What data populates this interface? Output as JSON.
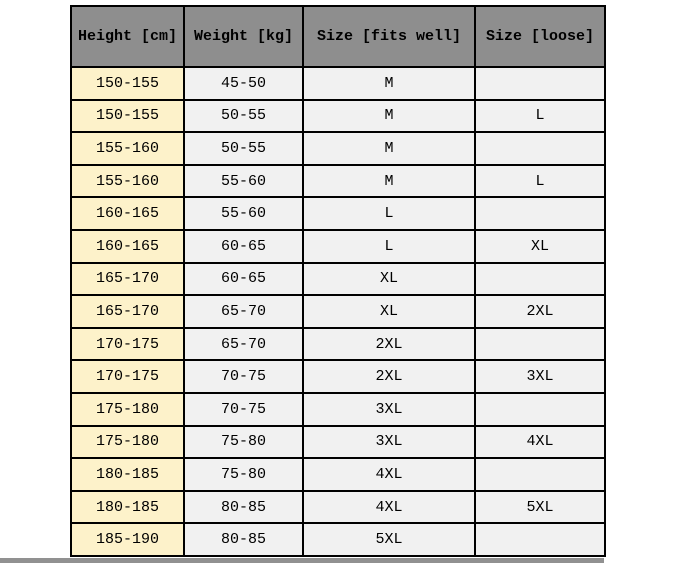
{
  "page": {
    "background": "#ffffff"
  },
  "table": {
    "header_bg": "#8e8e8e",
    "height_col_bg": "#fdf2ca",
    "cell_bg": "#f1f1f1",
    "border_color": "#000000",
    "columns": [
      "Height [cm]",
      "Weight [kg]",
      "Size [fits well]",
      "Size [loose]"
    ],
    "rows": [
      [
        "150-155",
        "45-50",
        "M",
        ""
      ],
      [
        "150-155",
        "50-55",
        "M",
        "L"
      ],
      [
        "155-160",
        "50-55",
        "M",
        ""
      ],
      [
        "155-160",
        "55-60",
        "M",
        "L"
      ],
      [
        "160-165",
        "55-60",
        "L",
        ""
      ],
      [
        "160-165",
        "60-65",
        "L",
        "XL"
      ],
      [
        "165-170",
        "60-65",
        "XL",
        ""
      ],
      [
        "165-170",
        "65-70",
        "XL",
        "2XL"
      ],
      [
        "170-175",
        "65-70",
        "2XL",
        ""
      ],
      [
        "170-175",
        "70-75",
        "2XL",
        "3XL"
      ],
      [
        "175-180",
        "70-75",
        "3XL",
        ""
      ],
      [
        "175-180",
        "75-80",
        "3XL",
        "4XL"
      ],
      [
        "180-185",
        "75-80",
        "4XL",
        ""
      ],
      [
        "180-185",
        "80-85",
        "4XL",
        "5XL"
      ],
      [
        "185-190",
        "80-85",
        "5XL",
        ""
      ]
    ]
  },
  "chart_data": {
    "type": "table",
    "title": "",
    "columns": [
      "Height [cm]",
      "Weight [kg]",
      "Size [fits well]",
      "Size [loose]"
    ],
    "rows": [
      [
        "150-155",
        "45-50",
        "M",
        ""
      ],
      [
        "150-155",
        "50-55",
        "M",
        "L"
      ],
      [
        "155-160",
        "50-55",
        "M",
        ""
      ],
      [
        "155-160",
        "55-60",
        "M",
        "L"
      ],
      [
        "160-165",
        "55-60",
        "L",
        ""
      ],
      [
        "160-165",
        "60-65",
        "L",
        "XL"
      ],
      [
        "165-170",
        "60-65",
        "XL",
        ""
      ],
      [
        "165-170",
        "65-70",
        "XL",
        "2XL"
      ],
      [
        "170-175",
        "65-70",
        "2XL",
        ""
      ],
      [
        "170-175",
        "70-75",
        "2XL",
        "3XL"
      ],
      [
        "175-180",
        "70-75",
        "3XL",
        ""
      ],
      [
        "175-180",
        "75-80",
        "3XL",
        "4XL"
      ],
      [
        "180-185",
        "75-80",
        "4XL",
        ""
      ],
      [
        "180-185",
        "80-85",
        "4XL",
        "5XL"
      ],
      [
        "185-190",
        "80-85",
        "5XL",
        ""
      ]
    ],
    "layout": {
      "header_background": "#8e8e8e",
      "first_column_background": "#fdf2ca",
      "body_background": "#f1f1f1",
      "grid": "on",
      "grid_color": "#000000"
    }
  }
}
